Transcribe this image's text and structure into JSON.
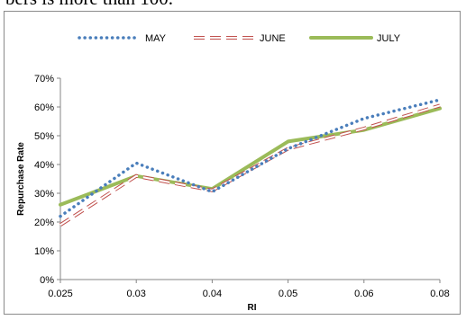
{
  "page": {
    "top_text": "bers is more than 100."
  },
  "colors": {
    "may": "#4a7ebb",
    "june": "#c0504d",
    "july": "#9bbb59",
    "axis": "#868686",
    "frame": "#8a8a8a"
  },
  "chart_data": {
    "type": "line",
    "title": "",
    "xlabel": "RI",
    "ylabel": "Repurchase Rate",
    "x_tick_labels": [
      "0.025",
      "0.03",
      "0.04",
      "0.05",
      "0.06",
      "0.08"
    ],
    "x_axis_type": "category",
    "y_tick_labels": [
      "0%",
      "10%",
      "20%",
      "30%",
      "40%",
      "50%",
      "60%",
      "70%"
    ],
    "ylim": [
      0,
      0.7
    ],
    "grid": false,
    "legend_position": "top",
    "series": [
      {
        "name": "MAY",
        "style": "dotted",
        "color": "#4a7ebb",
        "values": [
          0.22,
          0.405,
          0.305,
          0.455,
          0.56,
          0.625
        ]
      },
      {
        "name": "JUNE",
        "style": "dashed",
        "color": "#c0504d",
        "values": [
          0.19,
          0.36,
          0.31,
          0.455,
          0.525,
          0.605
        ]
      },
      {
        "name": "JULY",
        "style": "solid",
        "color": "#9bbb59",
        "values": [
          0.26,
          0.36,
          0.315,
          0.48,
          0.52,
          0.595
        ]
      }
    ]
  }
}
